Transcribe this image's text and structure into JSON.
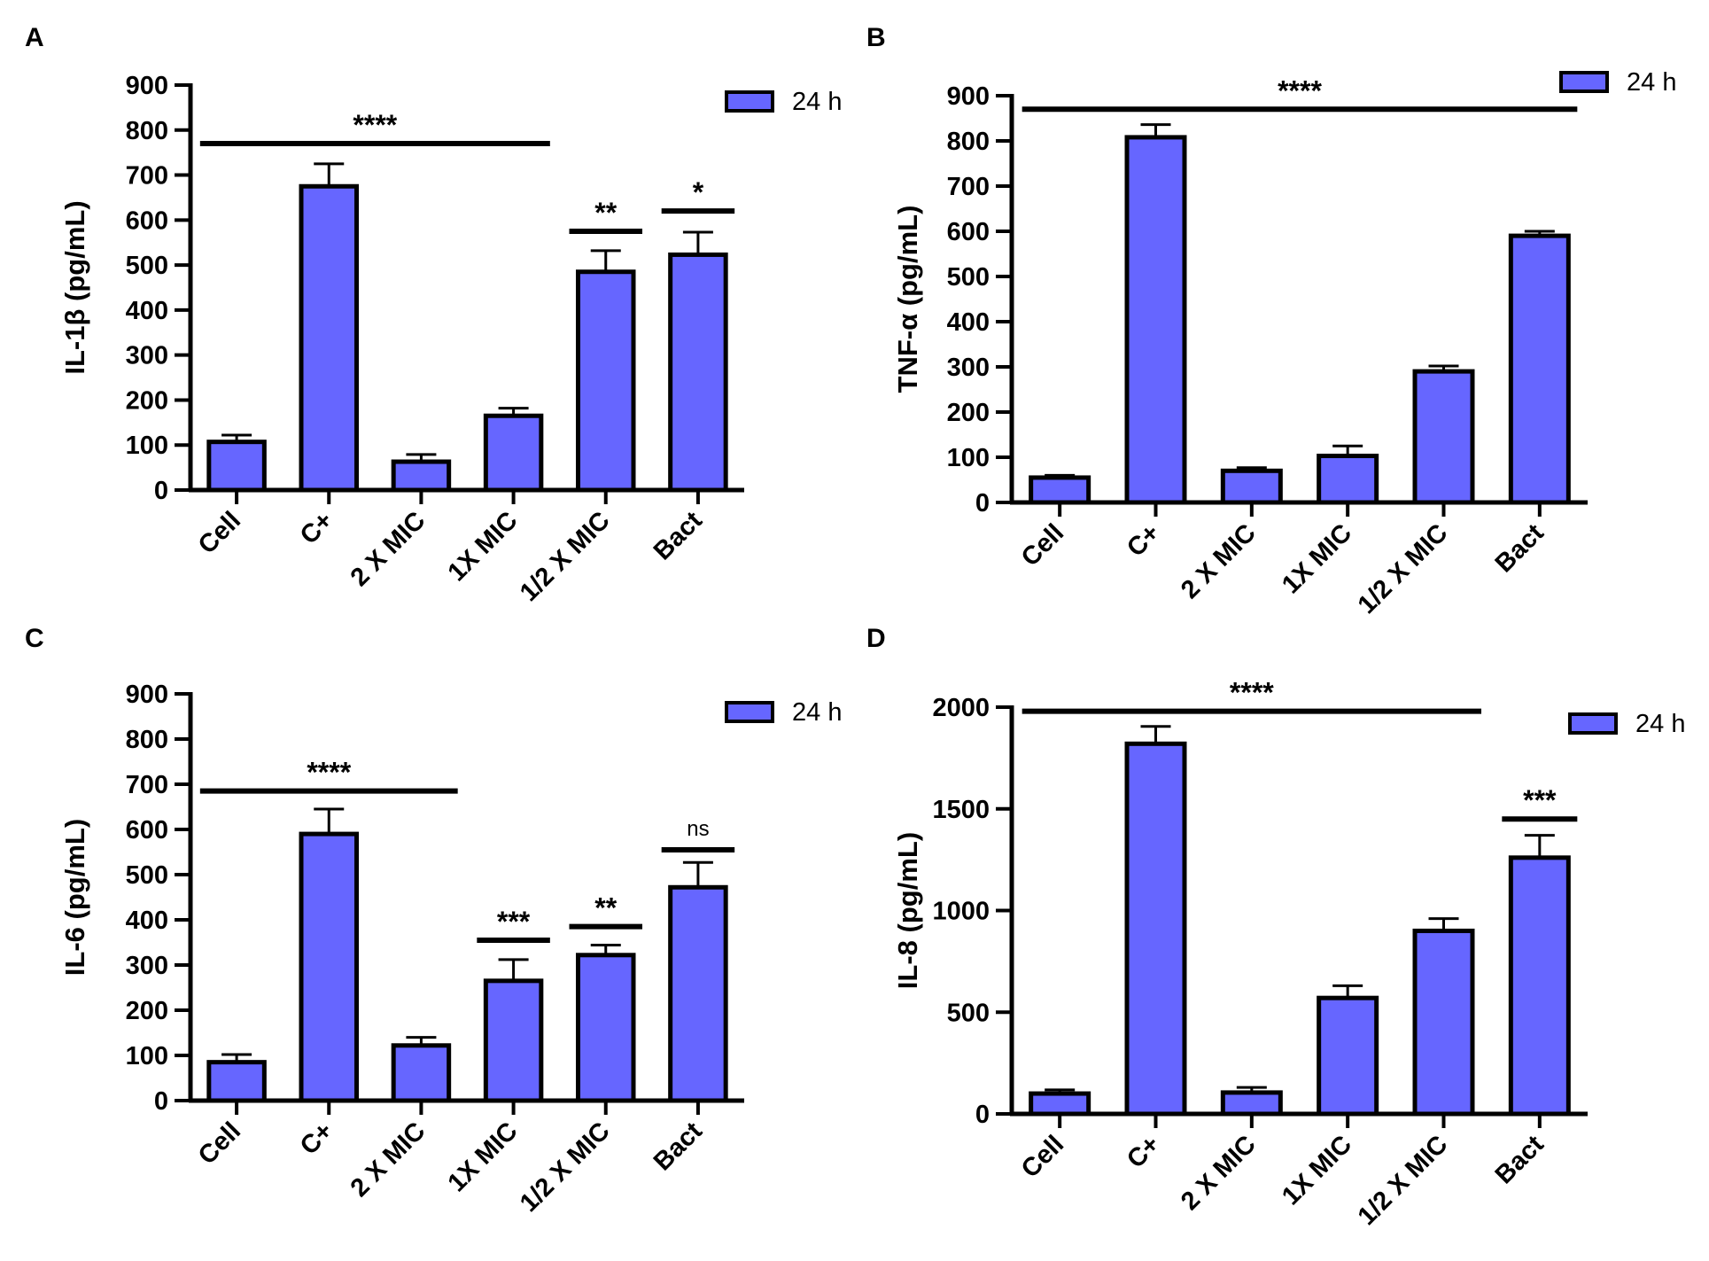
{
  "chart_data": [
    {
      "panel_label": "A",
      "type": "bar",
      "categories": [
        "Cell",
        "C+",
        "2 X MIC",
        "1X MIC",
        "1/2 X MIC",
        "Bact"
      ],
      "series": [
        {
          "name": "24 h",
          "values": [
            107,
            675,
            63,
            165,
            485,
            523
          ],
          "errors": [
            15,
            50,
            16,
            17,
            47,
            50
          ]
        }
      ],
      "ylabel": "IL-1β (pg/mL)",
      "xlabel": "",
      "ylim": [
        0,
        900
      ],
      "yticks": [
        0,
        100,
        200,
        300,
        400,
        500,
        600,
        700,
        800,
        900
      ],
      "legend_position": "top-right",
      "bar_color": "#6666ff",
      "significance": [
        {
          "label": "****",
          "from": 0,
          "to": 3,
          "y": 770
        },
        {
          "label": "**",
          "from": 4,
          "to": 4,
          "y": 575
        },
        {
          "label": "*",
          "from": 5,
          "to": 5,
          "y": 620
        }
      ]
    },
    {
      "panel_label": "B",
      "type": "bar",
      "categories": [
        "Cell",
        "C+",
        "2 X MIC",
        "1X MIC",
        "1/2 X MIC",
        "Bact"
      ],
      "series": [
        {
          "name": "24 h",
          "values": [
            55,
            808,
            70,
            103,
            290,
            590
          ],
          "errors": [
            5,
            28,
            7,
            22,
            12,
            10
          ]
        }
      ],
      "ylabel": "TNF-α (pg/mL)",
      "xlabel": "",
      "ylim": [
        0,
        900
      ],
      "yticks": [
        0,
        100,
        200,
        300,
        400,
        500,
        600,
        700,
        800,
        900
      ],
      "legend_position": "top-right",
      "bar_color": "#6666ff",
      "significance": [
        {
          "label": "****",
          "from": 0,
          "to": 5,
          "y": 870
        }
      ]
    },
    {
      "panel_label": "C",
      "type": "bar",
      "categories": [
        "Cell",
        "C+",
        "2 X MIC",
        "1X MIC",
        "1/2 X MIC",
        "Bact"
      ],
      "series": [
        {
          "name": "24 h",
          "values": [
            85,
            590,
            122,
            265,
            322,
            472
          ],
          "errors": [
            17,
            55,
            18,
            47,
            22,
            55
          ]
        }
      ],
      "ylabel": "IL-6 (pg/mL)",
      "xlabel": "",
      "ylim": [
        0,
        900
      ],
      "yticks": [
        0,
        100,
        200,
        300,
        400,
        500,
        600,
        700,
        800,
        900
      ],
      "legend_position": "top-right",
      "bar_color": "#6666ff",
      "significance": [
        {
          "label": "****",
          "from": 0,
          "to": 2,
          "y": 685
        },
        {
          "label": "***",
          "from": 3,
          "to": 3,
          "y": 355
        },
        {
          "label": "**",
          "from": 4,
          "to": 4,
          "y": 385
        },
        {
          "label": "ns",
          "from": 5,
          "to": 5,
          "y": 555
        }
      ]
    },
    {
      "panel_label": "D",
      "type": "bar",
      "categories": [
        "Cell",
        "C+",
        "2 X MIC",
        "1X MIC",
        "1/2 X MIC",
        "Bact"
      ],
      "series": [
        {
          "name": "24 h",
          "values": [
            100,
            1820,
            105,
            570,
            900,
            1260
          ],
          "errors": [
            18,
            85,
            25,
            60,
            60,
            110
          ]
        }
      ],
      "ylabel": "IL-8 (pg/mL)",
      "xlabel": "",
      "ylim": [
        0,
        2000
      ],
      "yticks": [
        0,
        500,
        1000,
        1500,
        2000
      ],
      "legend_position": "top-right",
      "bar_color": "#6666ff",
      "significance": [
        {
          "label": "****",
          "from": 0,
          "to": 4,
          "y": 1980
        },
        {
          "label": "***",
          "from": 5,
          "to": 5,
          "y": 1450
        }
      ]
    }
  ]
}
